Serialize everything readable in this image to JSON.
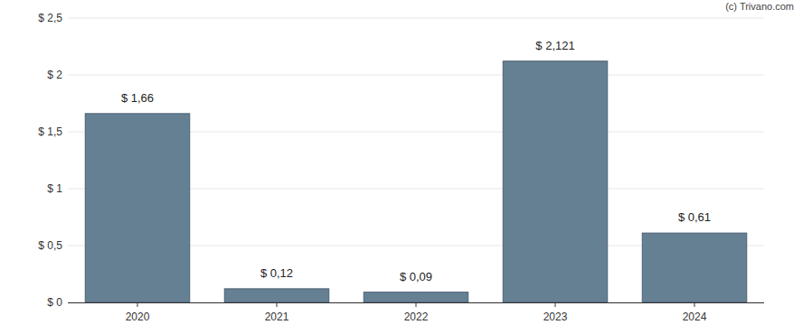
{
  "chart_data": {
    "type": "bar",
    "categories": [
      "2020",
      "2021",
      "2022",
      "2023",
      "2024"
    ],
    "values": [
      1.66,
      0.12,
      0.09,
      2.121,
      0.61
    ],
    "value_labels": [
      "$ 1,66",
      "$ 0,12",
      "$ 0,09",
      "$ 2,121",
      "$ 0,61"
    ],
    "data_labels": true,
    "color": "#657f93",
    "ylim": [
      0,
      2.5
    ],
    "yticks": [
      {
        "value": 0,
        "label": "$ 0"
      },
      {
        "value": 0.5,
        "label": "$ 0,5"
      },
      {
        "value": 1,
        "label": "$ 1"
      },
      {
        "value": 1.5,
        "label": "$ 1,5"
      },
      {
        "value": 2,
        "label": "$ 2"
      },
      {
        "value": 2.5,
        "label": "$ 2,5"
      }
    ],
    "grid": true,
    "annotations": [
      "(c) Trivano.com"
    ]
  }
}
